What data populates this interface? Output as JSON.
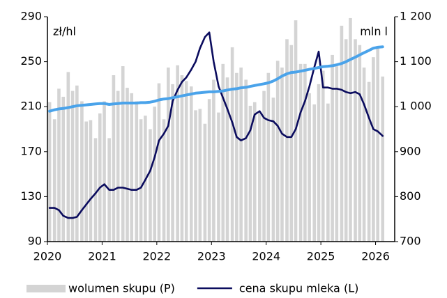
{
  "chart_data": {
    "type": "bar-line",
    "annotations": [
      "zł/hl",
      "mln l"
    ],
    "x": [
      2020.04,
      2020.13,
      2020.21,
      2020.29,
      2020.38,
      2020.46,
      2020.54,
      2020.63,
      2020.71,
      2020.79,
      2020.88,
      2020.96,
      2021.04,
      2021.13,
      2021.21,
      2021.29,
      2021.38,
      2021.46,
      2021.54,
      2021.63,
      2021.71,
      2021.79,
      2021.88,
      2021.96,
      2022.04,
      2022.13,
      2022.21,
      2022.29,
      2022.38,
      2022.46,
      2022.54,
      2022.63,
      2022.71,
      2022.79,
      2022.88,
      2022.96,
      2023.04,
      2023.13,
      2023.21,
      2023.29,
      2023.38,
      2023.46,
      2023.54,
      2023.63,
      2023.71,
      2023.79,
      2023.88,
      2023.96,
      2024.04,
      2024.13,
      2024.21,
      2024.29,
      2024.38,
      2024.46,
      2024.54,
      2024.63,
      2024.71,
      2024.79,
      2024.88,
      2024.96,
      2025.04,
      2025.13,
      2025.21,
      2025.29,
      2025.38,
      2025.46,
      2025.54,
      2025.63,
      2025.71,
      2025.79,
      2025.88,
      2025.96,
      2026.04,
      2026.13
    ],
    "series": [
      {
        "name": "wolumen skupu (P)",
        "kind": "bar",
        "axis": "y2",
        "color": "#d4d4d4",
        "values": [
          1010,
          972,
          1040,
          1022,
          1077,
          1035,
          1047,
          1012,
          967,
          970,
          930,
          985,
          1012,
          930,
          1070,
          1035,
          1090,
          1042,
          1030,
          1012,
          972,
          980,
          950,
          1000,
          1052,
          972,
          1087,
          1050,
          1092,
          1070,
          1057,
          1045,
          992,
          995,
          962,
          1017,
          1060,
          987,
          1095,
          1065,
          1132,
          1075,
          1087,
          1060,
          1002,
          1010,
          985,
          1035,
          1075,
          1020,
          1102,
          1087,
          1150,
          1137,
          1192,
          1095,
          1095,
          1030,
          1005,
          1050,
          1080,
          1007,
          1115,
          1090,
          1180,
          1150,
          1197,
          1150,
          1137,
          1087,
          1055,
          1110,
          1135,
          1067
        ]
      },
      {
        "name": "cena skupu mleka (L)",
        "kind": "line",
        "axis": "y",
        "color": "#0b0c5e",
        "values": [
          120,
          120,
          118,
          113,
          111,
          111,
          112,
          118,
          123,
          128,
          133,
          138,
          141,
          136,
          136,
          138,
          138,
          137,
          136,
          136,
          138,
          145,
          153,
          165,
          180,
          186,
          193,
          215,
          225,
          232,
          236,
          243,
          250,
          262,
          272,
          276,
          250,
          228,
          218,
          208,
          196,
          183,
          180,
          182,
          189,
          203,
          206,
          200,
          198,
          197,
          193,
          186,
          183,
          183,
          190,
          205,
          215,
          228,
          245,
          259,
          227,
          227,
          226,
          226,
          225,
          223,
          222,
          223,
          221,
          212,
          200,
          190,
          188,
          184
        ]
      },
      {
        "kind": "line",
        "axis": "y2",
        "color": "#4aa3ea",
        "values": [
          990,
          993,
          995,
          996,
          998,
          1000,
          1002,
          1003,
          1004,
          1005,
          1006,
          1007,
          1007,
          1005,
          1006,
          1007,
          1008,
          1008,
          1008,
          1008,
          1009,
          1009,
          1010,
          1012,
          1015,
          1017,
          1018,
          1020,
          1022,
          1024,
          1026,
          1028,
          1030,
          1031,
          1032,
          1033,
          1033,
          1034,
          1035,
          1037,
          1039,
          1040,
          1042,
          1043,
          1045,
          1047,
          1049,
          1051,
          1053,
          1057,
          1062,
          1068,
          1073,
          1076,
          1077,
          1079,
          1081,
          1083,
          1085,
          1087,
          1089,
          1090,
          1091,
          1093,
          1096,
          1100,
          1105,
          1110,
          1115,
          1120,
          1125,
          1130,
          1132,
          1133
        ]
      }
    ],
    "xlim": [
      2020,
      2026.35
    ],
    "xticks": [
      2020,
      2021,
      2022,
      2023,
      2024,
      2025,
      2026
    ],
    "ylim": [
      90,
      290
    ],
    "yticks": [
      90,
      130,
      170,
      210,
      250,
      290
    ],
    "y2lim": [
      700,
      1200
    ],
    "y2ticks": [
      700,
      800,
      900,
      {
        "value": 1000,
        "label": "1 000"
      },
      {
        "value": 1100,
        "label": "1 100"
      },
      {
        "value": 1200,
        "label": "1 200"
      }
    ]
  }
}
